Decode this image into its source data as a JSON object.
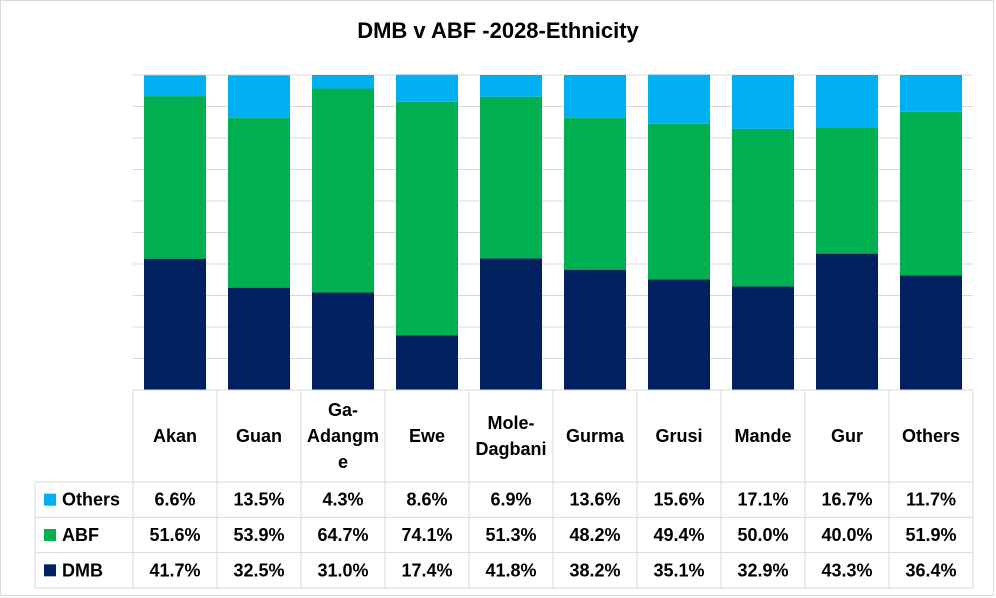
{
  "chart_data": {
    "type": "bar",
    "stacked": true,
    "percent": true,
    "title": "DMB v ABF -2028-Ethnicity",
    "categories": [
      [
        "Akan"
      ],
      [
        "Guan"
      ],
      [
        "Ga-",
        "Adangm",
        "e"
      ],
      [
        "Ewe"
      ],
      [
        "Mole-",
        "Dagbani"
      ],
      [
        "Gurma"
      ],
      [
        "Grusi"
      ],
      [
        "Mande"
      ],
      [
        "Gur"
      ],
      [
        "Others"
      ]
    ],
    "series": [
      {
        "name": "DMB",
        "color": "#002060",
        "values": [
          41.7,
          32.5,
          31.0,
          17.4,
          41.8,
          38.2,
          35.1,
          32.9,
          43.3,
          36.4
        ],
        "labels": [
          "41.7%",
          "32.5%",
          "31.0%",
          "17.4%",
          "41.8%",
          "38.2%",
          "35.1%",
          "32.9%",
          "43.3%",
          "36.4%"
        ]
      },
      {
        "name": "ABF",
        "color": "#00b050",
        "values": [
          51.6,
          53.9,
          64.7,
          74.1,
          51.3,
          48.2,
          49.4,
          50.0,
          40.0,
          51.9
        ],
        "labels": [
          "51.6%",
          "53.9%",
          "64.7%",
          "74.1%",
          "51.3%",
          "48.2%",
          "49.4%",
          "50.0%",
          "40.0%",
          "51.9%"
        ]
      },
      {
        "name": "Others",
        "color": "#00b0f0",
        "values": [
          6.6,
          13.5,
          4.3,
          8.6,
          6.9,
          13.6,
          15.6,
          17.1,
          16.7,
          11.7
        ],
        "labels": [
          "6.6%",
          "13.5%",
          "4.3%",
          "8.6%",
          "6.9%",
          "13.6%",
          "15.6%",
          "17.1%",
          "16.7%",
          "11.7%"
        ]
      }
    ],
    "ylim": [
      0,
      100
    ],
    "grid": true,
    "legend": "data-table"
  }
}
